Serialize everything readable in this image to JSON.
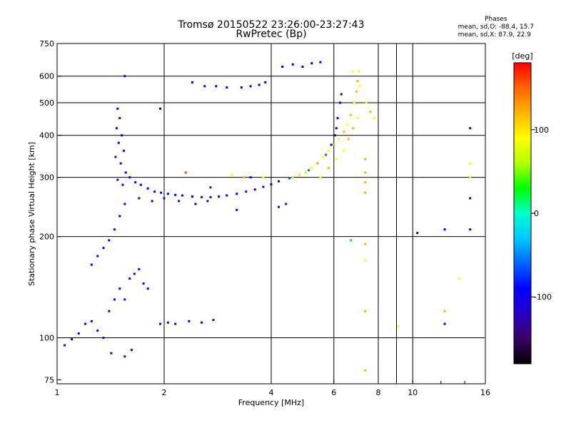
{
  "title": "Tromsø 20150522 23:26:00-23:27:43",
  "subtitle": "RwPretec (Bp)",
  "phases": {
    "header": "Phases",
    "line_o": "mean, sd,O: -88.4, 15.7",
    "line_x": "mean, sd,X: 87.9, 22.9"
  },
  "chart_data": {
    "type": "scatter",
    "xlabel": "Frequency [MHz]",
    "ylabel": "Stationary phase Virtual Height [km]",
    "x_scale": "log",
    "y_scale": "log",
    "xlim": [
      1,
      16
    ],
    "ylim": [
      73,
      750
    ],
    "x_ticks": [
      1,
      2,
      4,
      6,
      8,
      10,
      16
    ],
    "x_gridlines": [
      2,
      4,
      6,
      8,
      10
    ],
    "y_ticks": [
      75,
      100,
      200,
      300,
      400,
      500,
      600,
      750
    ],
    "y_gridlines": [
      100,
      200,
      300,
      400,
      500,
      600
    ],
    "grid": true,
    "colorbar": {
      "label": "[deg]",
      "range": [
        -180,
        180
      ],
      "ticks": [
        100,
        0,
        -100
      ],
      "colors": [
        "#000000",
        "#3c0064",
        "#2800c8",
        "#0000ff",
        "#0064ff",
        "#00c8ff",
        "#00ffc8",
        "#00ff00",
        "#b4ff00",
        "#ffff00",
        "#ffb400",
        "#ff6400",
        "#ff0000"
      ]
    },
    "series": [
      {
        "points": [
          [
            1.55,
            600,
            -100
          ],
          [
            1.48,
            480,
            -100
          ],
          [
            1.5,
            450,
            -120
          ],
          [
            1.47,
            420,
            -110
          ],
          [
            1.52,
            400,
            -105
          ],
          [
            1.49,
            380,
            -95
          ],
          [
            1.54,
            360,
            -110
          ],
          [
            1.46,
            345,
            -120
          ],
          [
            1.51,
            330,
            -100
          ],
          [
            1.56,
            310,
            -95
          ],
          [
            1.48,
            295,
            -110
          ],
          [
            1.53,
            285,
            -100
          ],
          [
            1.6,
            300,
            -90
          ],
          [
            1.66,
            290,
            -80
          ],
          [
            1.72,
            285,
            -95
          ],
          [
            1.8,
            278,
            -100
          ],
          [
            1.88,
            272,
            -105
          ],
          [
            1.96,
            270,
            -90
          ],
          [
            2.05,
            268,
            -100
          ],
          [
            2.15,
            266,
            -95
          ],
          [
            2.25,
            265,
            -100
          ],
          [
            2.4,
            263,
            -105
          ],
          [
            2.55,
            262,
            -110
          ],
          [
            2.7,
            262,
            -100
          ],
          [
            2.85,
            263,
            -95
          ],
          [
            3.0,
            265,
            -100
          ],
          [
            3.2,
            268,
            -105
          ],
          [
            3.4,
            272,
            -110
          ],
          [
            3.6,
            276,
            -100
          ],
          [
            3.8,
            281,
            -95
          ],
          [
            4.0,
            286,
            -100
          ],
          [
            4.2,
            292,
            -90
          ],
          [
            4.5,
            298,
            -70
          ],
          [
            4.8,
            305,
            -80
          ],
          [
            5.1,
            315,
            -60
          ],
          [
            5.4,
            330,
            -80
          ],
          [
            5.7,
            350,
            -70
          ],
          [
            5.9,
            375,
            -85
          ],
          [
            6.05,
            400,
            -90
          ],
          [
            6.1,
            420,
            -80
          ],
          [
            6.15,
            450,
            -85
          ],
          [
            6.25,
            500,
            -90
          ],
          [
            6.3,
            530,
            -85
          ],
          [
            1.7,
            260,
            -110
          ],
          [
            1.85,
            255,
            -100
          ],
          [
            2.0,
            260,
            -115
          ],
          [
            2.2,
            255,
            -120
          ],
          [
            2.45,
            250,
            -105
          ],
          [
            2.65,
            255,
            -110
          ],
          [
            1.1,
            99,
            -100
          ],
          [
            1.05,
            95,
            -110
          ],
          [
            1.15,
            103,
            -120
          ],
          [
            1.2,
            110,
            -95
          ],
          [
            1.25,
            112,
            -100
          ],
          [
            1.3,
            105,
            -110
          ],
          [
            1.35,
            100,
            -90
          ],
          [
            1.4,
            120,
            -105
          ],
          [
            1.45,
            130,
            -100
          ],
          [
            1.5,
            140,
            -110
          ],
          [
            1.55,
            130,
            -95
          ],
          [
            1.6,
            150,
            -100
          ],
          [
            1.65,
            155,
            -110
          ],
          [
            1.7,
            160,
            -105
          ],
          [
            1.75,
            145,
            -100
          ],
          [
            1.8,
            140,
            -95
          ],
          [
            1.25,
            165,
            -100
          ],
          [
            1.3,
            175,
            -110
          ],
          [
            1.35,
            185,
            -105
          ],
          [
            1.4,
            195,
            -100
          ],
          [
            1.45,
            210,
            -110
          ],
          [
            1.5,
            230,
            -100
          ],
          [
            1.55,
            250,
            -95
          ],
          [
            1.95,
            110,
            -100
          ],
          [
            2.05,
            111,
            -110
          ],
          [
            2.15,
            110,
            -105
          ],
          [
            2.35,
            112,
            -100
          ],
          [
            2.55,
            111,
            -95
          ],
          [
            2.75,
            113,
            -110
          ],
          [
            1.42,
            90,
            -100
          ],
          [
            1.55,
            88,
            -110
          ],
          [
            1.62,
            92,
            -105
          ],
          [
            2.4,
            575,
            -90
          ],
          [
            2.6,
            560,
            -95
          ],
          [
            2.8,
            560,
            -100
          ],
          [
            3.0,
            555,
            -90
          ],
          [
            3.3,
            555,
            -95
          ],
          [
            3.5,
            560,
            -100
          ],
          [
            3.7,
            565,
            -95
          ],
          [
            3.85,
            575,
            -90
          ],
          [
            4.3,
            640,
            -100
          ],
          [
            4.6,
            650,
            -95
          ],
          [
            4.9,
            640,
            -90
          ],
          [
            5.2,
            655,
            -100
          ],
          [
            5.5,
            660,
            -95
          ],
          [
            1.95,
            480,
            -100
          ],
          [
            2.3,
            310,
            -95
          ],
          [
            2.7,
            280,
            -110
          ],
          [
            3.2,
            240,
            -100
          ],
          [
            3.5,
            300,
            -95
          ],
          [
            4.2,
            245,
            -105
          ],
          [
            4.4,
            250,
            -110
          ],
          [
            10.3,
            205,
            -100
          ],
          [
            12.3,
            210,
            -100
          ],
          [
            14.5,
            210,
            -100
          ],
          [
            14.5,
            260,
            -100
          ],
          [
            14.5,
            420,
            -100
          ],
          [
            12.3,
            110,
            -100
          ]
        ]
      },
      {
        "points": [
          [
            4.6,
            300,
            60
          ],
          [
            4.8,
            305,
            80
          ],
          [
            5.0,
            310,
            70
          ],
          [
            5.2,
            320,
            100
          ],
          [
            5.4,
            330,
            110
          ],
          [
            5.6,
            345,
            90
          ],
          [
            5.8,
            360,
            100
          ],
          [
            6.0,
            375,
            120
          ],
          [
            6.2,
            390,
            100
          ],
          [
            6.4,
            410,
            110
          ],
          [
            6.55,
            430,
            95
          ],
          [
            6.7,
            460,
            105
          ],
          [
            6.85,
            500,
            100
          ],
          [
            6.95,
            540,
            110
          ],
          [
            7.0,
            580,
            120
          ],
          [
            7.05,
            620,
            100
          ],
          [
            5.5,
            300,
            100
          ],
          [
            5.8,
            320,
            110
          ],
          [
            6.1,
            340,
            100
          ],
          [
            6.4,
            360,
            95
          ],
          [
            6.6,
            390,
            105
          ],
          [
            6.8,
            420,
            110
          ],
          [
            7.0,
            450,
            100
          ],
          [
            7.35,
            340,
            130
          ],
          [
            7.35,
            310,
            130
          ],
          [
            7.35,
            290,
            120
          ],
          [
            7.35,
            270,
            130
          ],
          [
            7.35,
            190,
            110
          ],
          [
            7.35,
            170,
            100
          ],
          [
            7.35,
            120,
            110
          ],
          [
            7.35,
            80,
            130
          ],
          [
            6.7,
            195,
            40
          ],
          [
            6.8,
            620,
            90
          ],
          [
            7.1,
            560,
            100
          ],
          [
            7.4,
            500,
            100
          ],
          [
            7.6,
            470,
            110
          ],
          [
            7.8,
            450,
            100
          ],
          [
            9.1,
            108,
            100
          ],
          [
            12.3,
            120,
            130
          ],
          [
            13.5,
            150,
            100
          ],
          [
            14.5,
            330,
            100
          ],
          [
            14.5,
            300,
            100
          ],
          [
            3.1,
            305,
            80
          ],
          [
            3.35,
            300,
            120
          ],
          [
            3.8,
            300,
            100
          ],
          [
            2.3,
            310,
            150
          ]
        ]
      }
    ]
  }
}
